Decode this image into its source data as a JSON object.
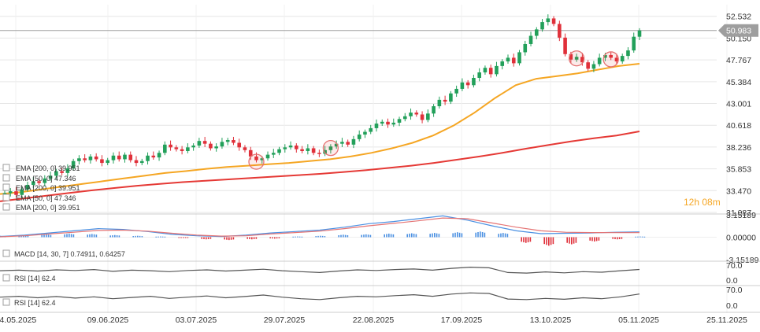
{
  "chart_data": {
    "type": "candlestick",
    "title": "",
    "x_tick_labels": [
      "14.05.2025",
      "09.06.2025",
      "03.07.2025",
      "29.07.2025",
      "22.08.2025",
      "17.09.2025",
      "13.10.2025",
      "05.11.2025",
      "25.11.2025"
    ],
    "price_axis_ticks": [
      "52.532",
      "50.150",
      "47.767",
      "45.384",
      "43.001",
      "40.618",
      "38.236",
      "35.853",
      "33.470",
      "31.087"
    ],
    "ylim": [
      31.087,
      53.8
    ],
    "current_price": "50.983",
    "current_price_value": 50.983,
    "timer": "12h 08m",
    "colors": {
      "up": "#22a05a",
      "down": "#e0303a",
      "ema50": "#f5a623",
      "ema200": "#e53935",
      "macd": "#4a90e2",
      "signal": "#e57373",
      "rsi": "#555555",
      "grid": "#e6e6e6",
      "axis_text": "#333333",
      "timer": "#f5a623"
    },
    "candles_close": [
      33.2,
      33.4,
      33.0,
      33.6,
      34.1,
      34.5,
      34.3,
      34.8,
      35.1,
      35.6,
      35.4,
      35.9,
      36.7,
      37.0,
      36.8,
      37.2,
      36.9,
      36.5,
      36.8,
      37.3,
      36.9,
      37.4,
      36.8,
      36.5,
      36.7,
      37.3,
      37.1,
      37.6,
      38.5,
      38.2,
      38.0,
      37.8,
      38.2,
      38.4,
      38.9,
      38.6,
      38.1,
      38.3,
      38.8,
      39.0,
      38.7,
      38.2,
      37.9,
      37.2,
      36.8,
      37.0,
      37.4,
      37.6,
      38.0,
      38.2,
      38.4,
      38.0,
      37.8,
      38.1,
      37.6,
      37.5,
      37.9,
      38.3,
      38.6,
      38.8,
      38.5,
      39.1,
      39.6,
      39.9,
      40.3,
      40.8,
      41.0,
      40.7,
      40.9,
      41.3,
      41.6,
      42.0,
      41.8,
      41.2,
      41.9,
      42.7,
      43.4,
      43.2,
      44.1,
      44.6,
      45.3,
      45.0,
      45.8,
      46.4,
      46.9,
      46.2,
      47.1,
      47.6,
      48.0,
      47.4,
      48.6,
      49.5,
      50.4,
      51.1,
      51.9,
      52.3,
      51.7,
      50.2,
      48.4,
      47.8,
      48.1,
      47.5,
      46.8,
      47.3,
      48.0,
      48.3,
      48.0,
      47.6,
      48.2,
      48.8,
      50.3,
      50.983
    ],
    "ema_50": [
      33.1,
      33.3,
      33.6,
      33.9,
      34.2,
      34.5,
      34.8,
      35.1,
      35.4,
      35.6,
      35.85,
      36.05,
      36.2,
      36.35,
      36.5,
      36.7,
      36.9,
      37.2,
      37.6,
      38.1,
      38.7,
      39.5,
      40.6,
      42.0,
      43.6,
      45.0,
      45.7,
      46.0,
      46.3,
      46.7,
      47.1,
      47.346
    ],
    "ema_200": [
      32.3,
      32.6,
      32.9,
      33.2,
      33.5,
      33.75,
      34.0,
      34.2,
      34.4,
      34.55,
      34.7,
      34.85,
      35.0,
      35.15,
      35.3,
      35.5,
      35.7,
      35.95,
      36.2,
      36.5,
      36.85,
      37.2,
      37.6,
      38.05,
      38.45,
      38.85,
      39.2,
      39.5,
      39.951
    ],
    "markers": [
      {
        "index": 44,
        "label": "marker"
      },
      {
        "index": 57,
        "label": "marker"
      },
      {
        "index": 100,
        "label": "marker"
      },
      {
        "index": 106,
        "label": "marker"
      }
    ],
    "legend": [
      {
        "name": "EMA",
        "params": "[200, 0]",
        "value": "39.951",
        "color": "#e53935"
      },
      {
        "name": "EMA",
        "params": "[50, 0]",
        "value": "47.346",
        "color": "#f5a623"
      },
      {
        "name": "EMA",
        "params": "[200, 0]",
        "value": "39.951",
        "color": "#e53935"
      },
      {
        "name": "EMA",
        "params": "[50, 0]",
        "value": "47.346",
        "color": "#f5a623"
      },
      {
        "name": "EMA",
        "params": "[200, 0]",
        "value": "39.951",
        "color": "#e53935"
      }
    ],
    "macd": {
      "label": "MACD",
      "params": "[14, 30, 7]",
      "values_text": "0.74911,  0.64257",
      "axis_ticks": [
        "3.15189",
        "0.00000",
        "-3.15189"
      ],
      "range": [
        -3.15189,
        3.15189
      ],
      "macd_line": [
        0.1,
        0.3,
        0.6,
        0.9,
        1.2,
        1.1,
        0.8,
        0.4,
        0.2,
        0.1,
        0.3,
        0.6,
        0.8,
        1.0,
        1.4,
        1.9,
        2.2,
        2.6,
        3.0,
        2.4,
        1.6,
        0.9,
        0.5,
        0.55,
        0.6,
        0.7,
        0.75
      ],
      "signal_line": [
        0.05,
        0.2,
        0.45,
        0.7,
        0.95,
        1.0,
        0.85,
        0.55,
        0.3,
        0.15,
        0.2,
        0.45,
        0.65,
        0.85,
        1.2,
        1.6,
        1.95,
        2.3,
        2.7,
        2.6,
        2.0,
        1.4,
        0.9,
        0.7,
        0.65,
        0.64,
        0.64
      ],
      "histogram": [
        0.2,
        0.3,
        0.4,
        0.5,
        0.45,
        0.3,
        0.2,
        0.1,
        -0.1,
        -0.3,
        -0.4,
        -0.3,
        -0.2,
        0.1,
        0.2,
        0.35,
        0.4,
        0.5,
        0.55,
        0.6,
        0.7,
        0.8,
        0.6,
        -0.8,
        -1.2,
        -1.0,
        -0.6,
        -0.3,
        0.1
      ]
    },
    "rsi_panels": [
      {
        "label": "RSI",
        "params": "[14]",
        "value": "62.4",
        "axis_ticks": [
          "70.0",
          "0.0"
        ],
        "values": [
          58,
          60,
          57,
          61,
          59,
          62,
          56,
          60,
          58,
          55,
          59,
          61,
          57,
          60,
          63,
          58,
          55,
          52,
          57,
          61,
          59,
          62,
          64,
          60,
          66,
          70,
          68,
          52,
          50,
          54,
          51,
          55,
          53,
          58,
          62.4
        ]
      },
      {
        "label": "RSI",
        "params": "[14]",
        "value": "62.4",
        "axis_ticks": [
          "70.0",
          "0.0"
        ],
        "values": [
          52,
          55,
          50,
          54,
          49,
          53,
          47,
          51,
          55,
          48,
          52,
          56,
          50,
          54,
          59,
          52,
          47,
          44,
          50,
          55,
          53,
          57,
          60,
          55,
          62,
          66,
          64,
          46,
          44,
          48,
          45,
          50,
          47,
          53,
          62.4
        ]
      }
    ]
  }
}
